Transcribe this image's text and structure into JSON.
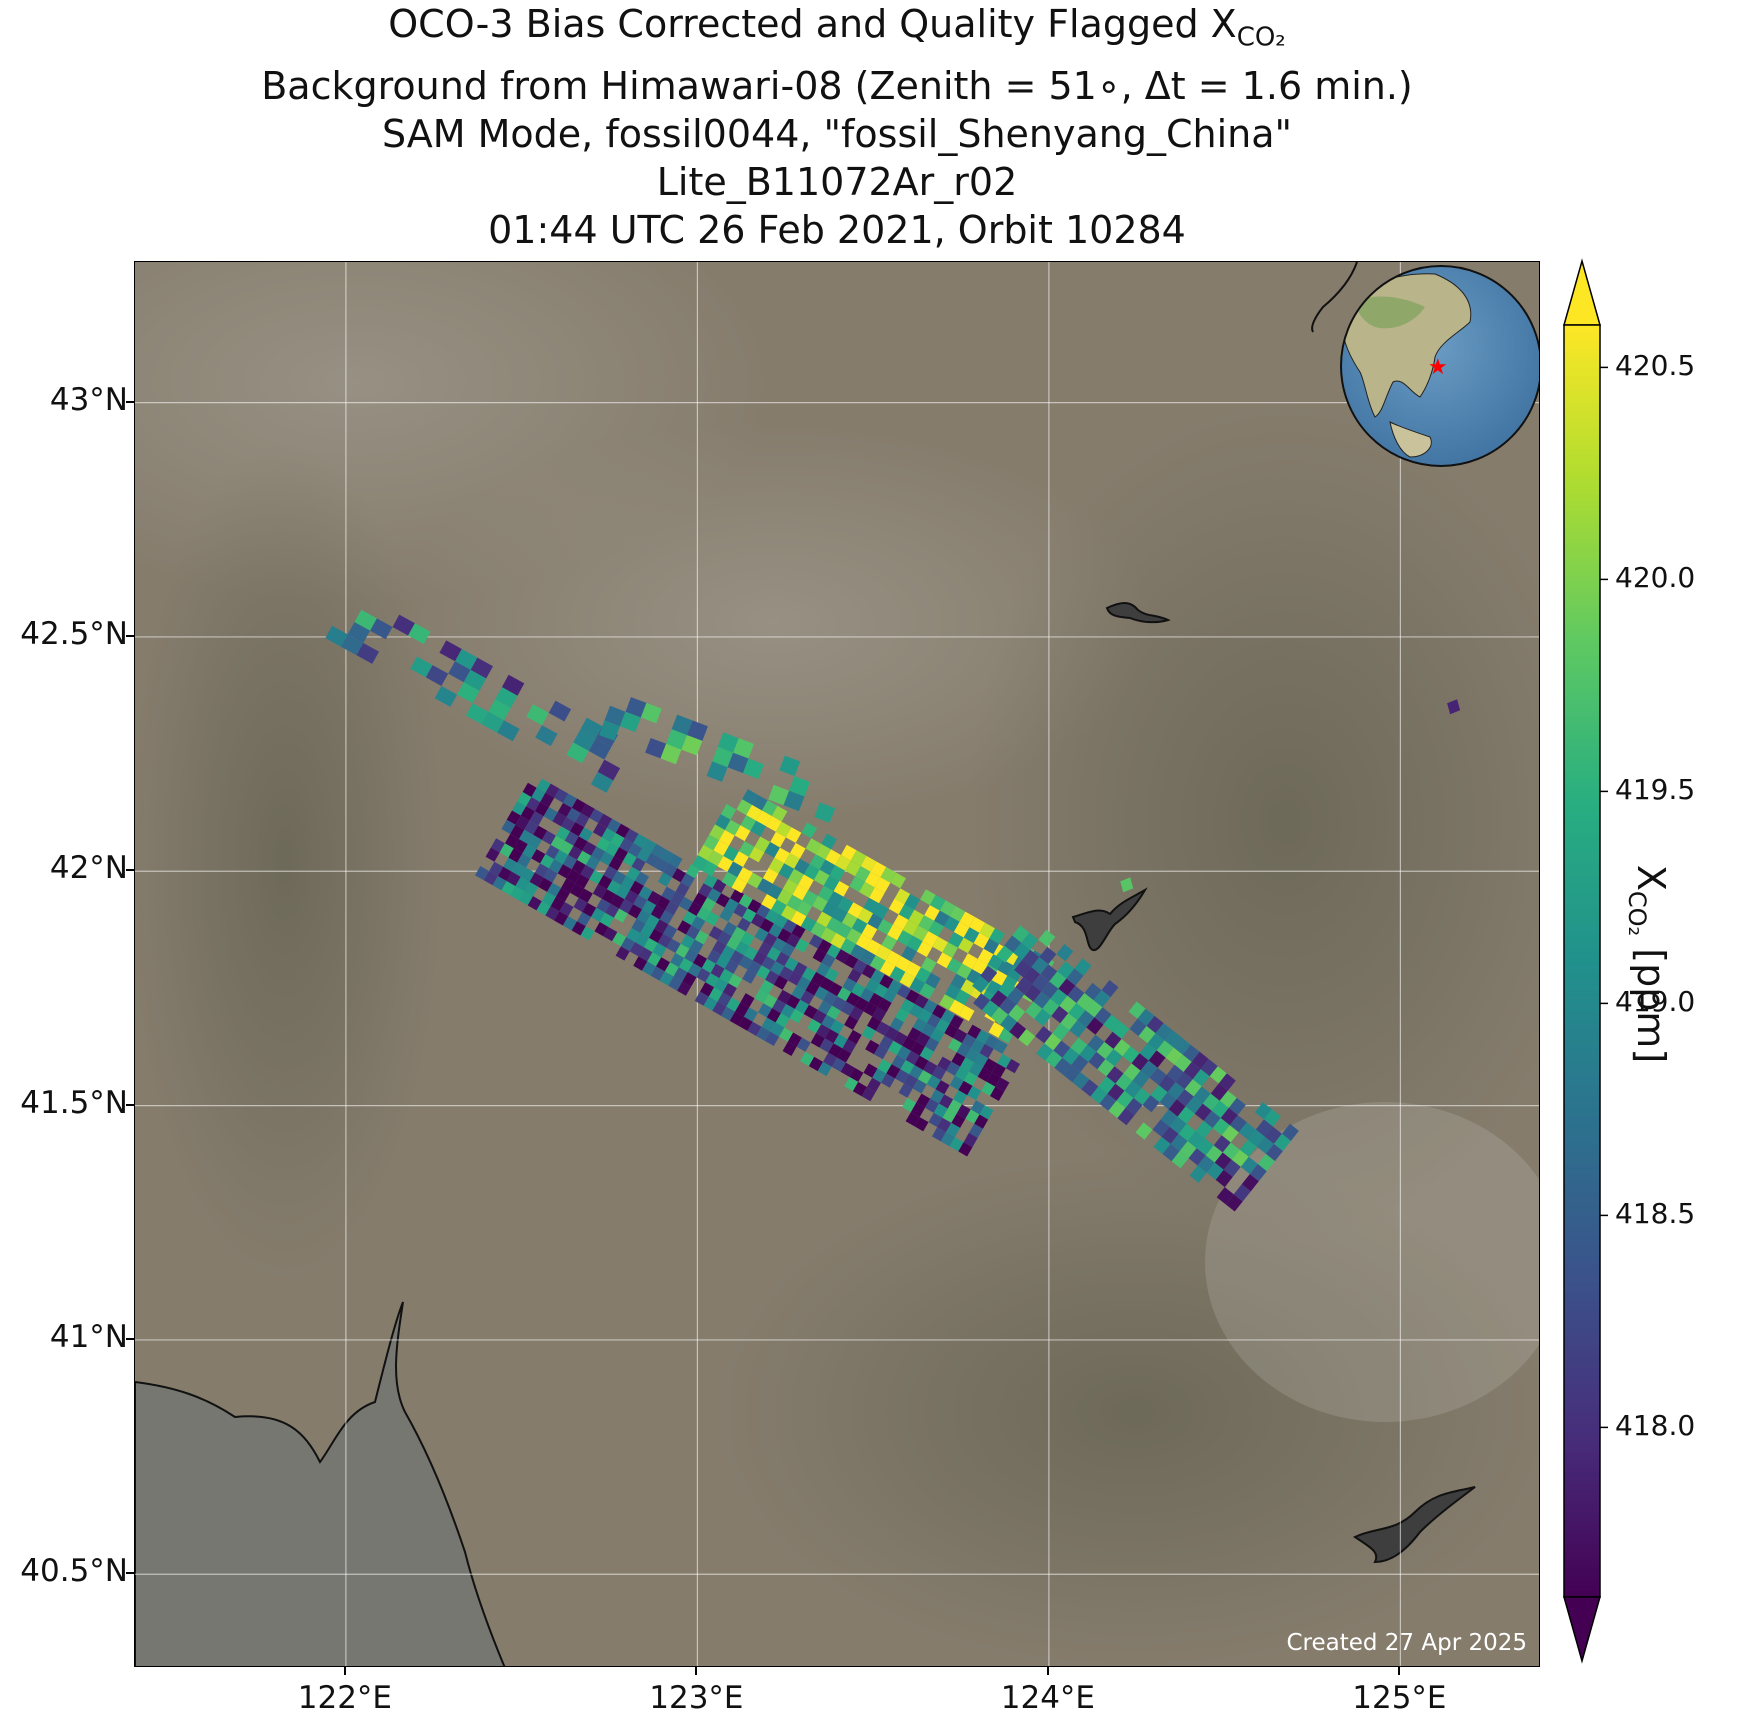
{
  "title": {
    "line1_prefix": "OCO-3 Bias Corrected and Quality Flagged X",
    "line1_subscript": "CO₂",
    "line2": "Background from Himawari-08 (Zenith = 51∘, Δt =  1.6 min.)",
    "line3": "SAM Mode, fossil0044, \"fossil_Shenyang_China\"",
    "line4": "Lite_B11072Ar_r02",
    "line5": "01:44 UTC 26 Feb 2021, Orbit 10284"
  },
  "map": {
    "lon_range": [
      121.4,
      125.4
    ],
    "lat_range": [
      40.3,
      43.3
    ],
    "lon_ticks": [
      {
        "value": 122,
        "label": "122°E"
      },
      {
        "value": 123,
        "label": "123°E"
      },
      {
        "value": 124,
        "label": "124°E"
      },
      {
        "value": 125,
        "label": "125°E"
      }
    ],
    "lat_ticks": [
      {
        "value": 43.0,
        "label": "43°N"
      },
      {
        "value": 42.5,
        "label": "42.5°N"
      },
      {
        "value": 42.0,
        "label": "42°N"
      },
      {
        "value": 41.5,
        "label": "41.5°N"
      },
      {
        "value": 41.0,
        "label": "41°N"
      },
      {
        "value": 40.5,
        "label": "40.5°N"
      }
    ],
    "grid": true,
    "created_note": "Created 27 Apr 2025",
    "inset_globe_marker": "red-star",
    "site_marker_color": "#ff0000"
  },
  "colorbar": {
    "label_prefix": "X",
    "label_subscript": "CO₂",
    "label_suffix": " [ppm]",
    "range": [
      417.6,
      420.6
    ],
    "extend": "both",
    "colormap": "viridis",
    "ticks": [
      {
        "value": 418.0,
        "label": "418.0"
      },
      {
        "value": 418.5,
        "label": "418.5"
      },
      {
        "value": 419.0,
        "label": "419.0"
      },
      {
        "value": 419.5,
        "label": "419.5"
      },
      {
        "value": 420.0,
        "label": "420.0"
      },
      {
        "value": 420.5,
        "label": "420.5"
      }
    ]
  },
  "chart_data": {
    "type": "heatmap",
    "variable": "XCO2",
    "units": "ppm",
    "swaths": [
      {
        "start": [
          121.98,
          42.55
        ],
        "end": [
          122.78,
          42.22
        ],
        "across": 0.12,
        "rows": 18,
        "cols": 4,
        "fill": 0.45,
        "mean": 418.7,
        "spread": 0.6
      },
      {
        "start": [
          122.7,
          42.35
        ],
        "end": [
          123.4,
          42.15
        ],
        "across": 0.1,
        "rows": 16,
        "cols": 3,
        "fill": 0.42,
        "mean": 419.0,
        "spread": 0.6
      },
      {
        "start": [
          122.45,
          42.1
        ],
        "end": [
          123.85,
          41.5
        ],
        "across": 0.25,
        "rows": 56,
        "cols": 11,
        "fill": 0.82,
        "mean": 418.4,
        "spread": 0.8
      },
      {
        "start": [
          123.05,
          42.1
        ],
        "end": [
          123.95,
          41.72
        ],
        "across": 0.2,
        "rows": 32,
        "cols": 8,
        "fill": 0.8,
        "mean": 420.0,
        "spread": 0.8
      },
      {
        "start": [
          123.85,
          41.82
        ],
        "end": [
          124.62,
          41.36
        ],
        "across": 0.22,
        "rows": 30,
        "cols": 8,
        "fill": 0.7,
        "mean": 418.8,
        "spread": 0.7
      }
    ],
    "isolated_points": [
      {
        "lon": 124.22,
        "lat": 41.97,
        "xco2": 419.8
      },
      {
        "lon": 125.15,
        "lat": 42.35,
        "xco2": 417.9
      }
    ]
  }
}
